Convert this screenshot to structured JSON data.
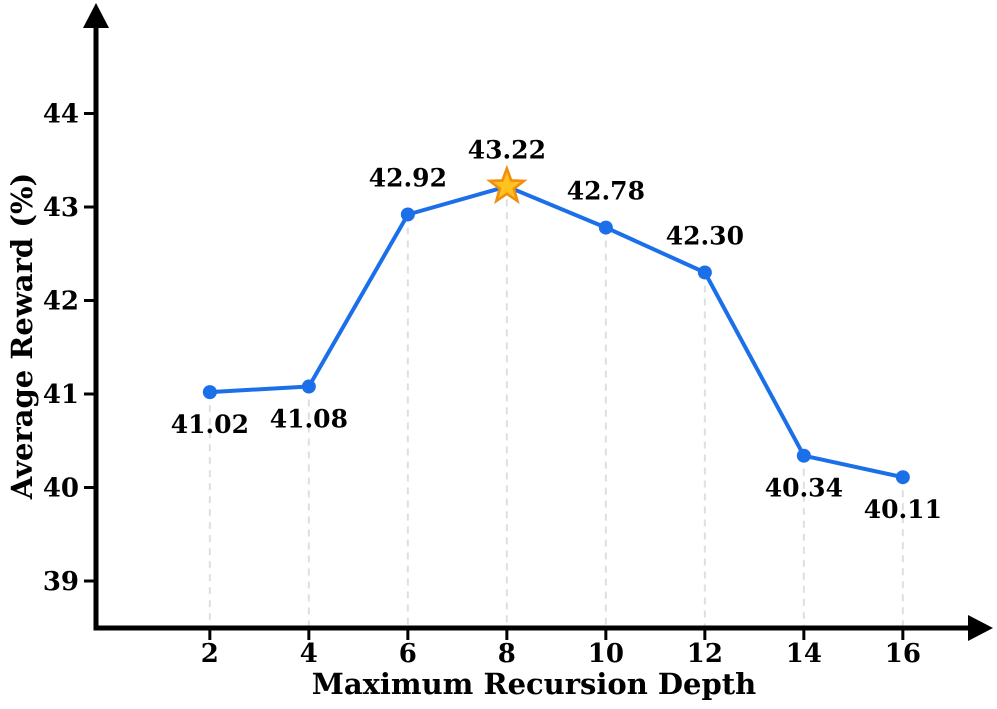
{
  "chart_data": {
    "type": "line",
    "title": "",
    "xlabel": "Maximum Recursion Depth",
    "ylabel": "Average Reward (%)",
    "x": [
      2,
      4,
      6,
      8,
      10,
      12,
      14,
      16
    ],
    "y": [
      41.02,
      41.08,
      42.92,
      43.22,
      42.78,
      42.3,
      40.34,
      40.11
    ],
    "point_labels": [
      "41.02",
      "41.08",
      "42.92",
      "43.22",
      "42.78",
      "42.30",
      "40.34",
      "40.11"
    ],
    "label_positions": [
      "below",
      "below",
      "above",
      "above",
      "above",
      "above",
      "below",
      "below"
    ],
    "highlight_index": 3,
    "highlight_marker": "star",
    "xticks": [
      2,
      4,
      6,
      8,
      10,
      12,
      14,
      16
    ],
    "yticks": [
      39,
      40,
      41,
      42,
      43,
      44
    ],
    "xlim": [
      -0.3,
      17.9
    ],
    "ylim": [
      38.5,
      45.7
    ],
    "grid": "vertical-dashed-from-points-to-axis",
    "legend": "none",
    "colors": {
      "line": "#1B6FE8",
      "marker": "#1B6FE8",
      "star_fill": "#FFC21E",
      "star_edge": "#F18E0C",
      "gridline": "#DFDFDF",
      "axis": "#000000",
      "text": "#000000",
      "background": "#FFFFFF"
    }
  }
}
